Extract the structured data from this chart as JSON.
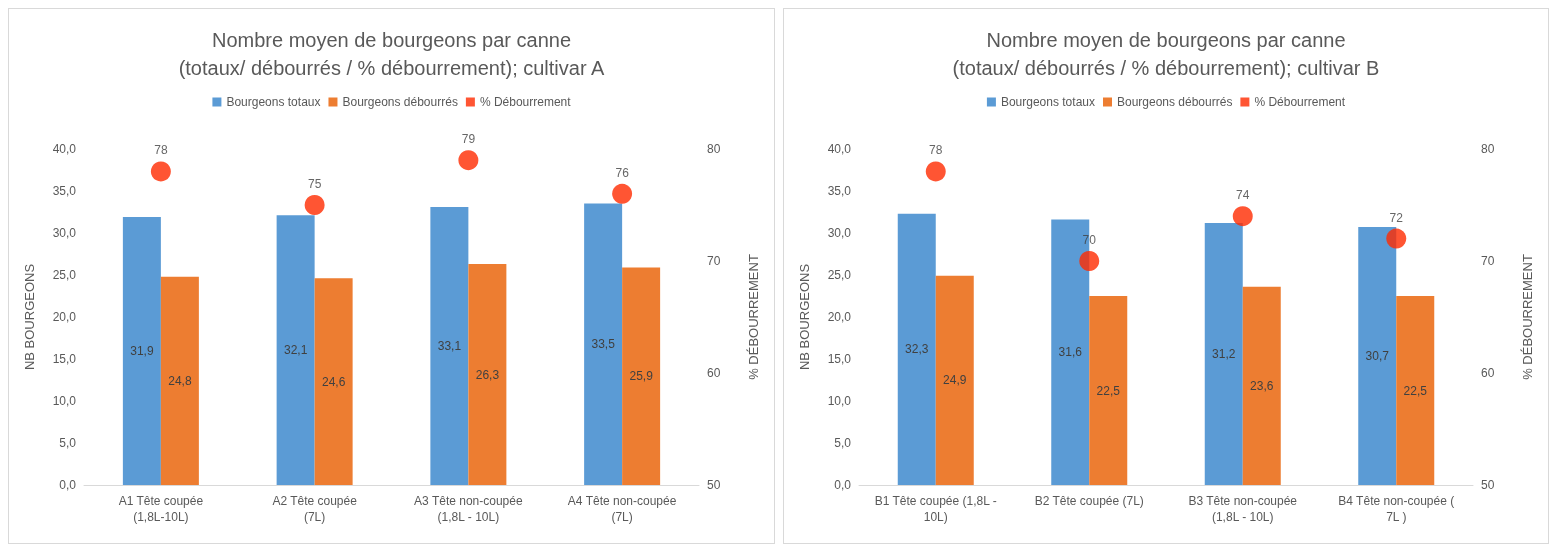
{
  "chart_data": [
    {
      "type": "bar",
      "title": "Nombre moyen de bourgeons par canne\n(totaux/ débourrés / % débourrement); cultivar A",
      "ylabel": "NB BOURGEONS",
      "y2label": "% DÉBOURREMENT",
      "categories": [
        "A1 Tête coupée\n(1,8L-10L)",
        "A2 Tête coupée\n(7L)",
        "A3 Tête non-coupée\n(1,8L - 10L)",
        "A4 Tête non-coupée\n(7L)"
      ],
      "series": [
        {
          "name": "Bourgeons totaux",
          "color": "#5b9bd5",
          "values": [
            31.9,
            32.1,
            33.1,
            33.5
          ],
          "value_labels": [
            "31,9",
            "32,1",
            "33,1",
            "33,5"
          ]
        },
        {
          "name": "Bourgeons débourrés",
          "color": "#ed7d31",
          "values": [
            24.8,
            24.6,
            26.3,
            25.9
          ],
          "value_labels": [
            "24,8",
            "24,6",
            "26,3",
            "25,9"
          ]
        },
        {
          "name": "% Débourrement",
          "type": "scatter",
          "axis": "y2",
          "color": "#ff2a00",
          "values": [
            78,
            75,
            79,
            76
          ],
          "value_labels": [
            "78",
            "75",
            "79",
            "76"
          ]
        }
      ],
      "ylim": [
        0,
        40
      ],
      "yticks": [
        {
          "value": 0,
          "label": "0,0"
        },
        {
          "value": 5,
          "label": "5,0"
        },
        {
          "value": 10,
          "label": "10,0"
        },
        {
          "value": 15,
          "label": "15,0"
        },
        {
          "value": 20,
          "label": "20,0"
        },
        {
          "value": 25,
          "label": "25,0"
        },
        {
          "value": 30,
          "label": "30,0"
        },
        {
          "value": 35,
          "label": "35,0"
        },
        {
          "value": 40,
          "label": "40,0"
        }
      ],
      "y2lim": [
        50,
        80
      ],
      "y2ticks": [
        50,
        60,
        70,
        80
      ],
      "legend": "top",
      "marker": "circle"
    },
    {
      "type": "bar",
      "title": "Nombre moyen de bourgeons par canne\n(totaux/ débourrés / % débourrement); cultivar B",
      "ylabel": "NB BOURGEONS",
      "y2label": "% DÉBOURREMENT",
      "categories": [
        "B1 Tête coupée (1,8L -\n10L)",
        "B2 Tête coupée (7L)",
        "B3 Tête non-coupée\n(1,8L - 10L)",
        "B4 Tête non-coupée (\n7L )"
      ],
      "series": [
        {
          "name": "Bourgeons totaux",
          "color": "#5b9bd5",
          "values": [
            32.3,
            31.6,
            31.2,
            30.7
          ],
          "value_labels": [
            "32,3",
            "31,6",
            "31,2",
            "30,7"
          ]
        },
        {
          "name": "Bourgeons débourrés",
          "color": "#ed7d31",
          "values": [
            24.9,
            22.5,
            23.6,
            22.5
          ],
          "value_labels": [
            "24,9",
            "22,5",
            "23,6",
            "22,5"
          ]
        },
        {
          "name": "% Débourrement",
          "type": "scatter",
          "axis": "y2",
          "color": "#ff2a00",
          "values": [
            78,
            70,
            74,
            72
          ],
          "value_labels": [
            "78",
            "70",
            "74",
            "72"
          ]
        }
      ],
      "ylim": [
        0,
        40
      ],
      "yticks": [
        {
          "value": 0,
          "label": "0,0"
        },
        {
          "value": 5,
          "label": "5,0"
        },
        {
          "value": 10,
          "label": "10,0"
        },
        {
          "value": 15,
          "label": "15,0"
        },
        {
          "value": 20,
          "label": "20,0"
        },
        {
          "value": 25,
          "label": "25,0"
        },
        {
          "value": 30,
          "label": "30,0"
        },
        {
          "value": 35,
          "label": "35,0"
        },
        {
          "value": 40,
          "label": "40,0"
        }
      ],
      "y2lim": [
        50,
        80
      ],
      "y2ticks": [
        50,
        60,
        70,
        80
      ],
      "legend": "top",
      "marker": "circle"
    }
  ]
}
